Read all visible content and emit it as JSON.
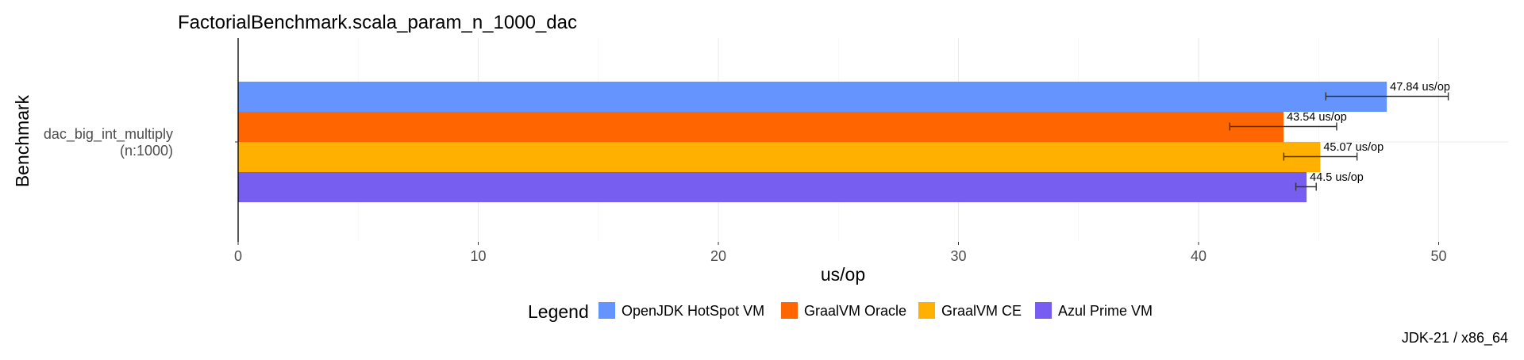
{
  "chart_data": {
    "type": "bar",
    "orientation": "horizontal",
    "title": "FactorialBenchmark.scala_param_n_1000_dac",
    "xlabel": "us/op",
    "ylabel": "Benchmark",
    "categories": [
      [
        "dac_big_int_multiply",
        "(n:1000)"
      ]
    ],
    "xlim": [
      0,
      52.8
    ],
    "x_ticks": [
      "0",
      "10",
      "20",
      "30",
      "40",
      "50"
    ],
    "grid": true,
    "series": [
      {
        "name": "OpenJDK HotSpot VM",
        "color": "#6694ff",
        "values": [
          47.84
        ],
        "error_low": [
          45.3
        ],
        "error_high": [
          50.4
        ],
        "label": "47.84 us/op"
      },
      {
        "name": "GraalVM Oracle",
        "color": "#ff6500",
        "values": [
          43.54
        ],
        "error_low": [
          41.3
        ],
        "error_high": [
          45.75
        ],
        "label": "43.54 us/op"
      },
      {
        "name": "GraalVM CE",
        "color": "#ffb000",
        "values": [
          45.07
        ],
        "error_low": [
          43.55
        ],
        "error_high": [
          46.6
        ],
        "label": "45.07 us/op"
      },
      {
        "name": "Azul Prime VM",
        "color": "#785ef0",
        "values": [
          44.5
        ],
        "error_low": [
          44.05
        ],
        "error_high": [
          44.9
        ],
        "label": "44.5 us/op"
      }
    ],
    "legend": {
      "title": "Legend",
      "position": "bottom"
    },
    "caption": "JDK-21 / x86_64"
  }
}
